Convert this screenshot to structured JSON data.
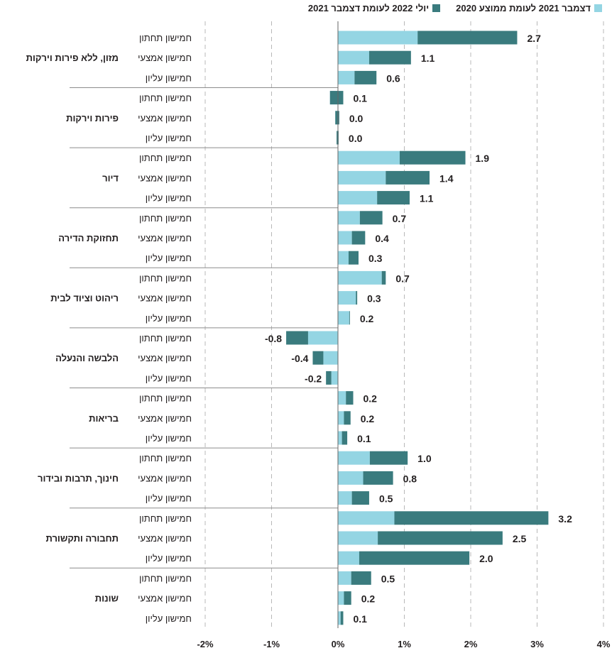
{
  "chart_data": {
    "type": "bar",
    "orientation": "horizontal",
    "stacked": true,
    "series": [
      {
        "name": "יולי 2022 לעומת דצמבר 2021",
        "color": "#3a7b7e"
      },
      {
        "name": "דצמבר 2021 לעומת ממוצע 2020",
        "color": "#94d5e3"
      }
    ],
    "legend_position": "top-right",
    "x_axis": {
      "min": -2,
      "max": 4,
      "ticks": [
        "-2%",
        "-1%",
        "0%",
        "1%",
        "2%",
        "3%",
        "4%"
      ],
      "tick_values": [
        -2,
        -1,
        0,
        1,
        2,
        3,
        4
      ]
    },
    "grid": "vertical-dashed",
    "groups": [
      {
        "name": "מזון, ללא פירות וירקות",
        "rows": [
          {
            "label": "חמישון תחתון",
            "s2020_2021": 1.2,
            "s2021_2022": 1.5,
            "total": "2.7"
          },
          {
            "label": "חמישון אמצעי",
            "s2020_2021": 0.47,
            "s2021_2022": 0.63,
            "total": "1.1"
          },
          {
            "label": "חמישון עליון",
            "s2020_2021": 0.25,
            "s2021_2022": 0.33,
            "total": "0.6"
          }
        ]
      },
      {
        "name": "פירות וירקות",
        "rows": [
          {
            "label": "חמישון תחתון",
            "s2020_2021": -0.12,
            "s2021_2022": 0.2,
            "total": "0.1"
          },
          {
            "label": "חמישון אמצעי",
            "s2020_2021": -0.04,
            "s2021_2022": 0.06,
            "total": "0.0"
          },
          {
            "label": "חמישון עליון",
            "s2020_2021": -0.02,
            "s2021_2022": 0.03,
            "total": "0.0"
          }
        ]
      },
      {
        "name": "דיור",
        "rows": [
          {
            "label": "חמישון תחתון",
            "s2020_2021": 0.93,
            "s2021_2022": 0.99,
            "total": "1.9"
          },
          {
            "label": "חמישון אמצעי",
            "s2020_2021": 0.72,
            "s2021_2022": 0.66,
            "total": "1.4"
          },
          {
            "label": "חמישון עליון",
            "s2020_2021": 0.59,
            "s2021_2022": 0.49,
            "total": "1.1"
          }
        ]
      },
      {
        "name": "תחזוקת הדירה",
        "rows": [
          {
            "label": "חמישון תחתון",
            "s2020_2021": 0.33,
            "s2021_2022": 0.34,
            "total": "0.7"
          },
          {
            "label": "חמישון אמצעי",
            "s2020_2021": 0.21,
            "s2021_2022": 0.2,
            "total": "0.4"
          },
          {
            "label": "חמישון עליון",
            "s2020_2021": 0.16,
            "s2021_2022": 0.15,
            "total": "0.3"
          }
        ]
      },
      {
        "name": "ריהוט וציוד לבית",
        "rows": [
          {
            "label": "חמישון תחתון",
            "s2020_2021": 0.66,
            "s2021_2022": 0.06,
            "total": "0.7"
          },
          {
            "label": "חמישון אמצעי",
            "s2020_2021": 0.27,
            "s2021_2022": 0.02,
            "total": "0.3"
          },
          {
            "label": "חמישון עליון",
            "s2020_2021": 0.17,
            "s2021_2022": 0.01,
            "total": "0.2"
          }
        ]
      },
      {
        "name": "הלבשה והנעלה",
        "rows": [
          {
            "label": "חמישון תחתון",
            "s2020_2021": -0.45,
            "s2021_2022": -0.33,
            "total": "-0.8"
          },
          {
            "label": "חמישון אמצעי",
            "s2020_2021": -0.22,
            "s2021_2022": -0.16,
            "total": "-0.4"
          },
          {
            "label": "חמישון עליון",
            "s2020_2021": -0.1,
            "s2021_2022": -0.08,
            "total": "-0.2"
          }
        ]
      },
      {
        "name": "בריאות",
        "rows": [
          {
            "label": "חמישון תחתון",
            "s2020_2021": 0.12,
            "s2021_2022": 0.11,
            "total": "0.2"
          },
          {
            "label": "חמישון אמצעי",
            "s2020_2021": 0.09,
            "s2021_2022": 0.1,
            "total": "0.2"
          },
          {
            "label": "חמישון עליון",
            "s2020_2021": 0.06,
            "s2021_2022": 0.08,
            "total": "0.1"
          }
        ]
      },
      {
        "name": "חינוך, תרבות ובידור",
        "rows": [
          {
            "label": "חמישון תחתון",
            "s2020_2021": 0.48,
            "s2021_2022": 0.57,
            "total": "1.0"
          },
          {
            "label": "חמישון אמצעי",
            "s2020_2021": 0.38,
            "s2021_2022": 0.45,
            "total": "0.8"
          },
          {
            "label": "חמישון עליון",
            "s2020_2021": 0.21,
            "s2021_2022": 0.26,
            "total": "0.5"
          }
        ]
      },
      {
        "name": "תחבורה ותקשורת",
        "rows": [
          {
            "label": "חמישון תחתון",
            "s2020_2021": 0.85,
            "s2021_2022": 2.32,
            "total": "3.2"
          },
          {
            "label": "חמישון אמצעי",
            "s2020_2021": 0.6,
            "s2021_2022": 1.88,
            "total": "2.5"
          },
          {
            "label": "חמישון עליון",
            "s2020_2021": 0.32,
            "s2021_2022": 1.66,
            "total": "2.0"
          }
        ]
      },
      {
        "name": "שונות",
        "rows": [
          {
            "label": "חמישון תחתון",
            "s2020_2021": 0.2,
            "s2021_2022": 0.3,
            "total": "0.5"
          },
          {
            "label": "חמישון אמצעי",
            "s2020_2021": 0.09,
            "s2021_2022": 0.11,
            "total": "0.2"
          },
          {
            "label": "חמישון עליון",
            "s2020_2021": 0.04,
            "s2021_2022": 0.04,
            "total": "0.1"
          }
        ]
      }
    ]
  }
}
